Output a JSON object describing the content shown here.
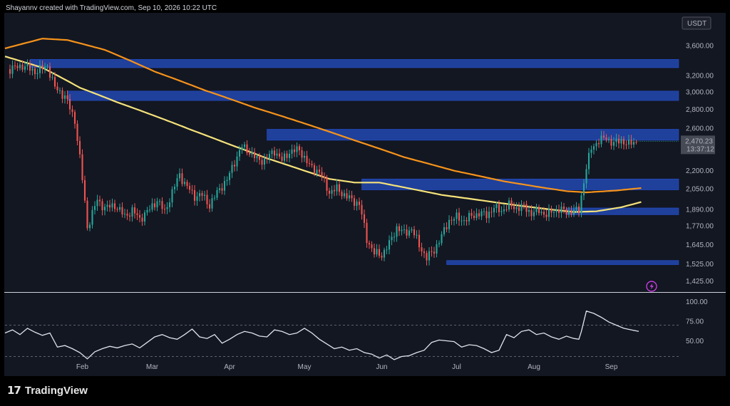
{
  "header": {
    "text": "Shayannv created with TradingView.com, Sep 10, 2026 10:22 UTC"
  },
  "footer": {
    "brand": "TradingView",
    "logo_mark": "17"
  },
  "colors": {
    "background": "#131722",
    "zone": "#2962ff",
    "candle_up": "#26a69a",
    "candle_down": "#ef5350",
    "ma_long": "#f7931a",
    "ma_short": "#f5e27a",
    "rsi": "#dfe3ea",
    "price_label_bg": "#454a55"
  },
  "chart_data": [
    {
      "type": "candlestick",
      "title": "",
      "currency_label": "USDT",
      "log_scale": true,
      "y_ticks": [
        3600,
        3200,
        3000,
        2800,
        2600,
        2200,
        2050,
        1890,
        1770,
        1645,
        1525,
        1425
      ],
      "y_tick_labels": [
        "3,600.00",
        "3,200.00",
        "3,000.00",
        "2,800.00",
        "2,600.00",
        "2,200.00",
        "2,050.00",
        "1,890.00",
        "1,770.00",
        "1,645.00",
        "1,525.00",
        "1,425.00"
      ],
      "ylim": [
        1380,
        4050
      ],
      "x_ticks": [
        "Feb",
        "Mar",
        "Apr",
        "May",
        "Jun",
        "Jul",
        "Aug",
        "Sep"
      ],
      "x_tick_days": [
        31,
        59,
        90,
        120,
        151,
        181,
        212,
        243
      ],
      "xlim": [
        0,
        270
      ],
      "current_price": {
        "value": 2470.23,
        "label": "2,470.23",
        "countdown": "13:37:12"
      },
      "close_anchors": [
        [
          2,
          3280
        ],
        [
          7,
          3330
        ],
        [
          12,
          3250
        ],
        [
          17,
          3320
        ],
        [
          20,
          3050
        ],
        [
          24,
          2950
        ],
        [
          28,
          2680
        ],
        [
          30,
          2310
        ],
        [
          33,
          1760
        ],
        [
          37,
          1960
        ],
        [
          40,
          1900
        ],
        [
          44,
          1920
        ],
        [
          48,
          1840
        ],
        [
          51,
          1880
        ],
        [
          54,
          1820
        ],
        [
          58,
          1890
        ],
        [
          61,
          1960
        ],
        [
          64,
          1870
        ],
        [
          67,
          2020
        ],
        [
          70,
          2170
        ],
        [
          72,
          2090
        ],
        [
          76,
          1990
        ],
        [
          79,
          2000
        ],
        [
          82,
          1920
        ],
        [
          86,
          2050
        ],
        [
          89,
          2120
        ],
        [
          92,
          2280
        ],
        [
          95,
          2420
        ],
        [
          98,
          2370
        ],
        [
          101,
          2300
        ],
        [
          104,
          2290
        ],
        [
          108,
          2380
        ],
        [
          111,
          2290
        ],
        [
          114,
          2370
        ],
        [
          118,
          2390
        ],
        [
          122,
          2240
        ],
        [
          126,
          2190
        ],
        [
          130,
          2020
        ],
        [
          133,
          2050
        ],
        [
          136,
          2000
        ],
        [
          139,
          1960
        ],
        [
          142,
          1930
        ],
        [
          145,
          1680
        ],
        [
          148,
          1590
        ],
        [
          151,
          1580
        ],
        [
          154,
          1650
        ],
        [
          157,
          1760
        ],
        [
          160,
          1720
        ],
        [
          163,
          1750
        ],
        [
          166,
          1640
        ],
        [
          169,
          1560
        ],
        [
          172,
          1610
        ],
        [
          175,
          1700
        ],
        [
          178,
          1810
        ],
        [
          181,
          1830
        ],
        [
          184,
          1810
        ],
        [
          187,
          1840
        ],
        [
          190,
          1860
        ],
        [
          193,
          1850
        ],
        [
          196,
          1900
        ],
        [
          199,
          1880
        ],
        [
          202,
          1920
        ],
        [
          205,
          1900
        ],
        [
          208,
          1910
        ],
        [
          211,
          1860
        ],
        [
          214,
          1880
        ],
        [
          217,
          1850
        ],
        [
          220,
          1880
        ],
        [
          222,
          1890
        ],
        [
          225,
          1870
        ],
        [
          228,
          1880
        ],
        [
          230,
          1880
        ],
        [
          231,
          1990
        ],
        [
          233,
          2230
        ],
        [
          235,
          2400
        ],
        [
          238,
          2480
        ],
        [
          241,
          2500
        ],
        [
          244,
          2450
        ],
        [
          247,
          2480
        ],
        [
          250,
          2440
        ],
        [
          253,
          2470.23
        ]
      ],
      "ma_long_anchors": [
        [
          0,
          3560
        ],
        [
          15,
          3700
        ],
        [
          25,
          3680
        ],
        [
          40,
          3540
        ],
        [
          60,
          3250
        ],
        [
          80,
          3020
        ],
        [
          100,
          2820
        ],
        [
          120,
          2650
        ],
        [
          140,
          2480
        ],
        [
          160,
          2320
        ],
        [
          180,
          2200
        ],
        [
          200,
          2110
        ],
        [
          215,
          2060
        ],
        [
          225,
          2030
        ],
        [
          233,
          2020
        ],
        [
          245,
          2035
        ],
        [
          255,
          2055
        ]
      ],
      "ma_short_anchors": [
        [
          0,
          3450
        ],
        [
          15,
          3300
        ],
        [
          30,
          3050
        ],
        [
          45,
          2880
        ],
        [
          60,
          2730
        ],
        [
          75,
          2580
        ],
        [
          90,
          2440
        ],
        [
          105,
          2310
        ],
        [
          120,
          2200
        ],
        [
          130,
          2130
        ],
        [
          140,
          2100
        ],
        [
          150,
          2100
        ],
        [
          160,
          2060
        ],
        [
          175,
          2000
        ],
        [
          190,
          1960
        ],
        [
          205,
          1920
        ],
        [
          218,
          1890
        ],
        [
          228,
          1870
        ],
        [
          237,
          1875
        ],
        [
          247,
          1905
        ],
        [
          255,
          1945
        ]
      ],
      "zones": [
        {
          "from_day": 10,
          "low": 3300,
          "high": 3410
        },
        {
          "from_day": 25,
          "low": 2900,
          "high": 3010
        },
        {
          "from_day": 105,
          "low": 2480,
          "high": 2590
        },
        {
          "from_day": 143,
          "low": 2040,
          "high": 2130
        },
        {
          "from_day": 225,
          "low": 1850,
          "high": 1900
        },
        {
          "from_day": 177,
          "low": 1520,
          "high": 1545
        }
      ]
    },
    {
      "type": "line",
      "title": "",
      "y_ticks": [
        100,
        75,
        50
      ],
      "y_tick_labels": [
        "100.00",
        "75.00",
        "50.00"
      ],
      "ylim": [
        25,
        105
      ],
      "dashed_levels": [
        70,
        30
      ],
      "xlim": [
        0,
        270
      ],
      "series": [
        {
          "name": "",
          "x": [
            0,
            3,
            6,
            9,
            12,
            15,
            18,
            21,
            24,
            27,
            30,
            33,
            36,
            39,
            42,
            45,
            48,
            51,
            54,
            57,
            60,
            63,
            66,
            69,
            72,
            75,
            78,
            81,
            84,
            87,
            90,
            93,
            96,
            99,
            102,
            105,
            108,
            111,
            114,
            117,
            120,
            123,
            126,
            129,
            132,
            135,
            138,
            141,
            144,
            147,
            150,
            153,
            156,
            159,
            162,
            165,
            168,
            171,
            174,
            177,
            180,
            183,
            186,
            189,
            192,
            195,
            198,
            201,
            204,
            207,
            210,
            213,
            216,
            219,
            222,
            225,
            228,
            230,
            231,
            233,
            236,
            239,
            242,
            245,
            248,
            251,
            254
          ],
          "values": [
            60,
            64,
            58,
            66,
            61,
            57,
            60,
            42,
            44,
            40,
            35,
            27,
            36,
            40,
            43,
            41,
            44,
            46,
            41,
            48,
            55,
            58,
            54,
            52,
            58,
            65,
            55,
            53,
            58,
            47,
            52,
            58,
            62,
            60,
            56,
            55,
            64,
            62,
            58,
            60,
            66,
            60,
            52,
            46,
            40,
            42,
            38,
            40,
            35,
            33,
            28,
            32,
            26,
            30,
            31,
            35,
            38,
            48,
            51,
            50,
            49,
            42,
            45,
            44,
            40,
            35,
            38,
            58,
            54,
            62,
            64,
            58,
            60,
            55,
            52,
            56,
            53,
            52,
            62,
            88,
            85,
            80,
            74,
            70,
            66,
            64,
            62
          ]
        }
      ]
    }
  ]
}
